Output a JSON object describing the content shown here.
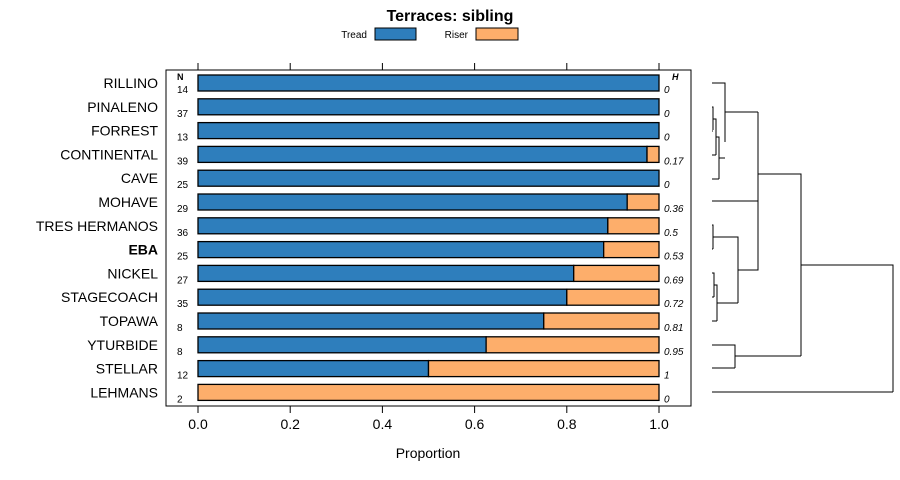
{
  "chart_data": {
    "type": "bar",
    "orientation": "horizontal",
    "stacked": true,
    "title": "Terraces: sibling",
    "xlabel": "Proportion",
    "ylabel": "",
    "xlim": [
      0,
      1
    ],
    "x_ticks": [
      "0.0",
      "0.2",
      "0.4",
      "0.6",
      "0.8",
      "1.0"
    ],
    "legend": [
      {
        "name": "Tread",
        "color": "#2e7ebc"
      },
      {
        "name": "Riser",
        "color": "#fdae6b"
      }
    ],
    "n_header": "N",
    "h_header": "H",
    "categories": [
      "RILLINO",
      "PINALENO",
      "FORREST",
      "CONTINENTAL",
      "CAVE",
      "MOHAVE",
      "TRES HERMANOS",
      "EBA",
      "NICKEL",
      "STAGECOACH",
      "TOPAWA",
      "YTURBIDE",
      "STELLAR",
      "LEHMANS"
    ],
    "highlighted_category": "EBA",
    "n": [
      "14",
      "37",
      "13",
      "39",
      "25",
      "29",
      "36",
      "25",
      "27",
      "35",
      "8",
      "8",
      "12",
      "2"
    ],
    "h": [
      "0",
      "0",
      "0",
      "0.17",
      "0",
      "0.36",
      "0.5",
      "0.53",
      "0.69",
      "0.72",
      "0.81",
      "0.95",
      "1",
      "0"
    ],
    "series": [
      {
        "name": "Tread",
        "values": [
          1.0,
          1.0,
          1.0,
          0.974,
          1.0,
          0.931,
          0.889,
          0.88,
          0.815,
          0.8,
          0.75,
          0.625,
          0.5,
          0.0
        ]
      },
      {
        "name": "Riser",
        "values": [
          0.0,
          0.0,
          0.0,
          0.026,
          0.0,
          0.069,
          0.111,
          0.12,
          0.185,
          0.2,
          0.25,
          0.375,
          0.5,
          1.0
        ]
      }
    ],
    "dendrogram": "hierarchical clustering tree of the 14 sites shown to the right of the plot"
  }
}
